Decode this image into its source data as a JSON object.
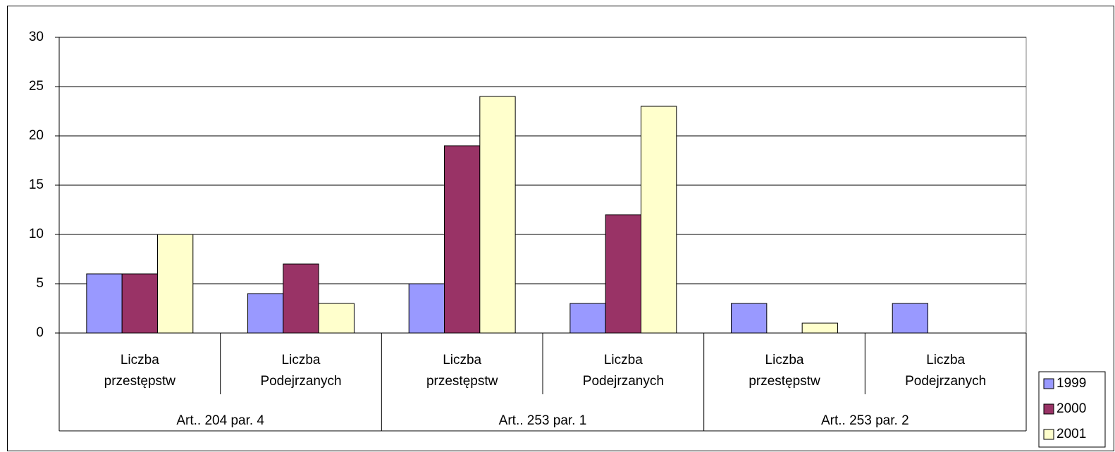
{
  "chart_data": {
    "type": "bar",
    "categories": [
      "Liczba przestępstw",
      "Liczba Podejrzanych",
      "Liczba przestępstw",
      "Liczba Podejrzanych",
      "Liczba przestępstw",
      "Liczba Podejrzanych"
    ],
    "groups": [
      "Art.. 204 par. 4",
      "Art.. 253 par. 1",
      "Art.. 253 par. 2"
    ],
    "series": [
      {
        "name": "1999",
        "color": "#9999ff",
        "values": [
          6,
          4,
          5,
          3,
          3,
          3
        ]
      },
      {
        "name": "2000",
        "color": "#993366",
        "values": [
          6,
          7,
          19,
          12,
          0,
          0
        ]
      },
      {
        "name": "2001",
        "color": "#ffffcc",
        "values": [
          10,
          3,
          24,
          23,
          1,
          0
        ]
      }
    ],
    "ylim": [
      0,
      30
    ],
    "yticks": [
      0,
      5,
      10,
      15,
      20,
      25,
      30
    ],
    "grid": true,
    "legend": "bottom-right"
  }
}
